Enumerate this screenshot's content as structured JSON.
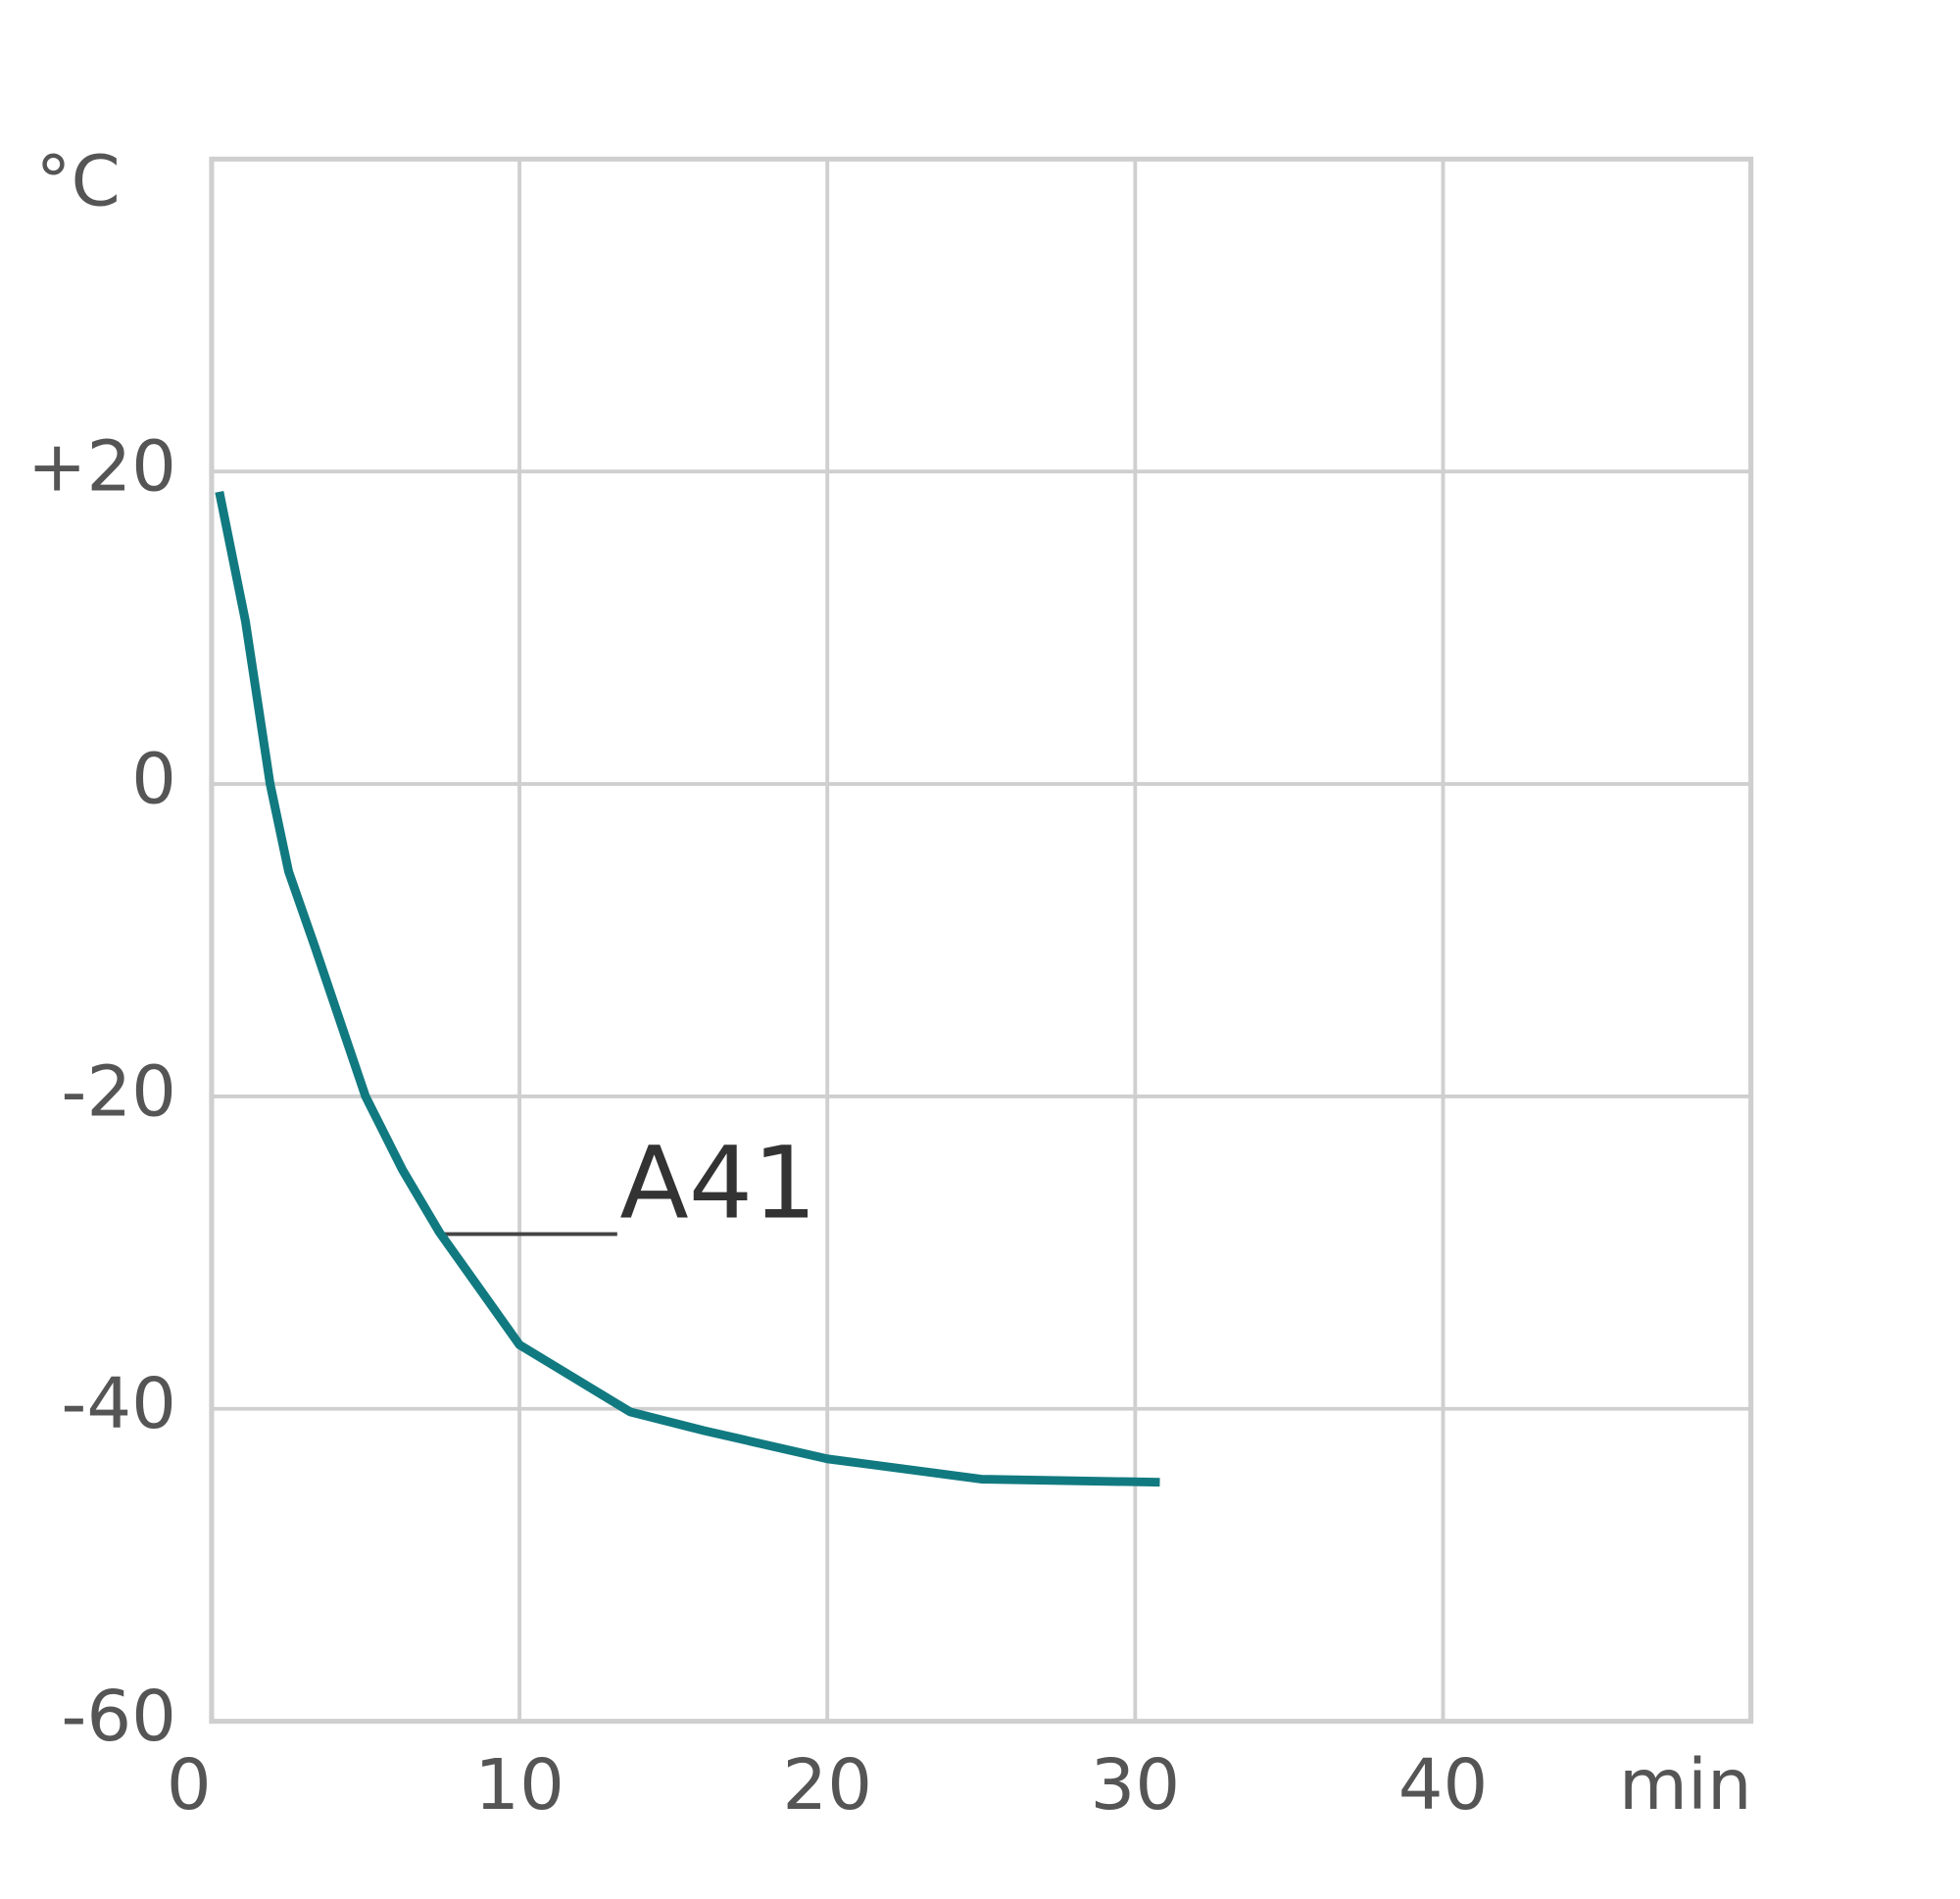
{
  "chart_data": {
    "type": "line",
    "y_label": "°C",
    "x_label": "min",
    "x": [
      0.25,
      1.1,
      1.9,
      2.5,
      3.35,
      5,
      6.2,
      7.4,
      10,
      13.6,
      16,
      20,
      25,
      30.8
    ],
    "series": [
      {
        "name": "A41",
        "color": "#117a80",
        "values": [
          18.7,
          10.4,
          0,
          -5.6,
          -10.4,
          -20,
          -24.7,
          -28.7,
          -35.9,
          -40.2,
          -41.4,
          -43.2,
          -44.5,
          -44.7
        ]
      }
    ],
    "xlim": [
      0,
      50
    ],
    "ylim": [
      -60,
      40
    ],
    "xticks": [
      0,
      10,
      20,
      30,
      40
    ],
    "yticks": [
      -60,
      -40,
      -20,
      0,
      {
        "value": 20,
        "label": "+20"
      }
    ],
    "grid": true
  }
}
